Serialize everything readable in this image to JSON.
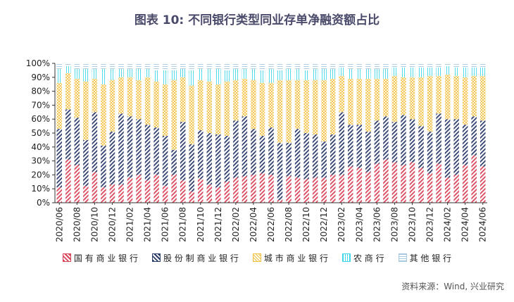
{
  "title": "图表 10: 不同银行类型同业存单净融资额占比",
  "source": "资料来源：Wind, 兴业研究",
  "chart_data": {
    "type": "bar",
    "stacked": true,
    "ylim": [
      0,
      100
    ],
    "yticks": [
      "0%",
      "10%",
      "20%",
      "30%",
      "40%",
      "50%",
      "60%",
      "70%",
      "80%",
      "90%",
      "100%"
    ],
    "x_tick_labels": [
      "2020/06",
      "2020/08",
      "2020/10",
      "2020/12",
      "2021/02",
      "2021/04",
      "2021/06",
      "2021/08",
      "2021/10",
      "2021/12",
      "2022/02",
      "2022/04",
      "2022/06",
      "2022/08",
      "2022/10",
      "2022/12",
      "2023/02",
      "2023/04",
      "2023/06",
      "2023/08",
      "2023/10",
      "2023/12",
      "2024/02",
      "2024/04",
      "2024/06"
    ],
    "categories": [
      "2020/06",
      "2020/07",
      "2020/08",
      "2020/09",
      "2020/10",
      "2020/11",
      "2020/12",
      "2021/01",
      "2021/02",
      "2021/03",
      "2021/04",
      "2021/05",
      "2021/06",
      "2021/07",
      "2021/08",
      "2021/09",
      "2021/10",
      "2021/11",
      "2021/12",
      "2022/01",
      "2022/02",
      "2022/03",
      "2022/04",
      "2022/05",
      "2022/06",
      "2022/07",
      "2022/08",
      "2022/09",
      "2022/10",
      "2022/11",
      "2022/12",
      "2023/01",
      "2023/02",
      "2023/03",
      "2023/04",
      "2023/05",
      "2023/06",
      "2023/07",
      "2023/08",
      "2023/09",
      "2023/10",
      "2023/11",
      "2023/12",
      "2024/01",
      "2024/02",
      "2024/03",
      "2024/04",
      "2024/05",
      "2024/06"
    ],
    "series": [
      {
        "name": "国有商业银行",
        "color": "#d9465a",
        "values": [
          11,
          31,
          27,
          12,
          22,
          11,
          13,
          13,
          18,
          20,
          16,
          20,
          12,
          20,
          16,
          8,
          17,
          13,
          11,
          15,
          18,
          19,
          20,
          21,
          20,
          2,
          19,
          18,
          17,
          18,
          18,
          20,
          20,
          26,
          25,
          22,
          28,
          31,
          29,
          27,
          29,
          25,
          21,
          28,
          18,
          20,
          27,
          34,
          26
        ]
      },
      {
        "name": "股份制商业银行",
        "color": "#2f3f6e",
        "values": [
          42,
          36,
          34,
          33,
          43,
          30,
          38,
          51,
          44,
          40,
          40,
          34,
          36,
          18,
          42,
          34,
          35,
          37,
          38,
          33,
          41,
          43,
          33,
          27,
          34,
          41,
          24,
          35,
          33,
          31,
          26,
          29,
          45,
          30,
          31,
          29,
          31,
          31,
          29,
          36,
          31,
          30,
          30,
          36,
          42,
          40,
          29,
          28,
          33
        ]
      },
      {
        "name": "城市商业银行",
        "color": "#f0c040",
        "values": [
          33,
          26,
          28,
          42,
          24,
          44,
          37,
          26,
          28,
          28,
          34,
          33,
          37,
          50,
          32,
          42,
          36,
          37,
          36,
          39,
          29,
          27,
          35,
          38,
          32,
          45,
          45,
          35,
          38,
          39,
          44,
          40,
          26,
          33,
          33,
          38,
          30,
          27,
          33,
          27,
          30,
          35,
          40,
          27,
          32,
          31,
          34,
          29,
          32
        ]
      },
      {
        "name": "农商行",
        "color": "#41d7e8",
        "values": [
          10,
          5,
          7,
          9,
          7,
          11,
          8,
          6,
          6,
          8,
          6,
          8,
          10,
          7,
          6,
          11,
          8,
          9,
          11,
          8,
          8,
          7,
          8,
          9,
          10,
          7,
          8,
          8,
          7,
          8,
          8,
          7,
          6,
          7,
          7,
          7,
          7,
          7,
          6,
          7,
          7,
          7,
          6,
          6,
          6,
          6,
          7,
          6,
          6
        ]
      },
      {
        "name": "其他银行",
        "color": "#a8c8e0",
        "values": [
          4,
          2,
          4,
          4,
          4,
          4,
          4,
          4,
          4,
          4,
          4,
          5,
          5,
          5,
          4,
          5,
          4,
          4,
          4,
          5,
          4,
          4,
          4,
          5,
          4,
          5,
          4,
          4,
          5,
          4,
          4,
          4,
          3,
          4,
          4,
          4,
          4,
          4,
          3,
          3,
          3,
          3,
          3,
          3,
          2,
          3,
          3,
          3,
          3
        ]
      }
    ]
  }
}
